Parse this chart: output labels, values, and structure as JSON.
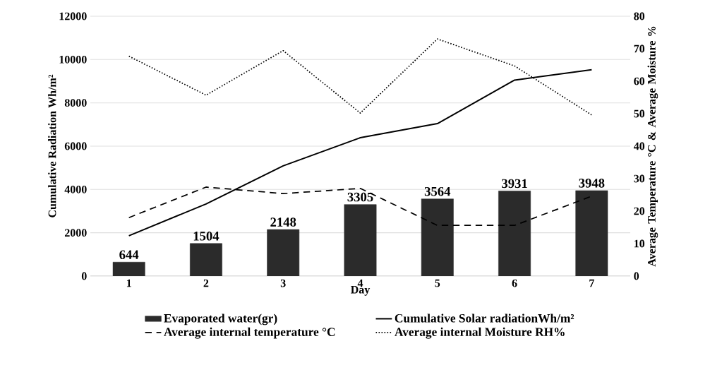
{
  "chart_data": {
    "type": "bar",
    "xlabel": "Day",
    "ylabel": "Cumulative Radiation Wh/m²",
    "y2label": "Average Temperature °C & Average Moisture %",
    "categories": [
      "1",
      "2",
      "3",
      "4",
      "5",
      "6",
      "7"
    ],
    "series": [
      {
        "name": "Evaporated water(gr)",
        "color": "#2b2b2b",
        "values": [
          644,
          1504,
          2148,
          3305,
          3564,
          3931,
          3948
        ],
        "value_labels": [
          "644",
          "1504",
          "2148",
          "3305",
          "3564",
          "3931",
          "3948"
        ]
      },
      {
        "name": "Cumulative Solar radiationWh/m²",
        "type": "line",
        "color": "#000000",
        "line_style": "solid",
        "values": [
          1860,
          3330,
          5090,
          6390,
          7040,
          9050,
          9530
        ]
      },
      {
        "name": "Average internal temperature °C",
        "type": "line",
        "color": "#000000",
        "line_style": "dashed",
        "axis": "y2",
        "values": [
          18.0,
          27.4,
          25.4,
          27.0,
          15.6,
          15.6,
          24.6
        ]
      },
      {
        "name": "Average internal Moisture RH%",
        "type": "line",
        "color": "#000000",
        "line_style": "dotted",
        "axis": "y2",
        "values": [
          67.7,
          55.7,
          69.4,
          50.2,
          73.0,
          64.7,
          49.6
        ]
      }
    ],
    "ylim": [
      0,
      12000
    ],
    "yticks": [
      0,
      2000,
      4000,
      6000,
      8000,
      10000,
      12000
    ],
    "y2lim": [
      0,
      80
    ],
    "y2ticks": [
      0,
      10,
      20,
      30,
      40,
      50,
      60,
      70,
      80
    ],
    "grid": "y",
    "legend": "bottom"
  }
}
